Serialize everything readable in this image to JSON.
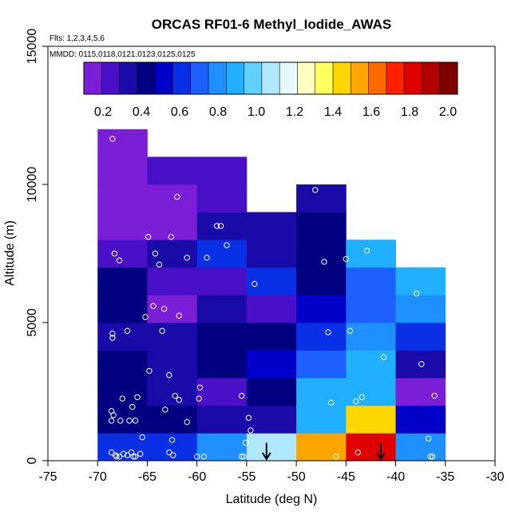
{
  "chart_data": {
    "type": "heatmap",
    "title": "ORCAS RF01-6 Methyl_Iodide_AWAS",
    "flights_note": "Flts: 1,2,3,4,5,6",
    "dates_note": "MMDD: 0115,0118,0121,0123,0125,0125",
    "xlabel": "Latitude (deg N)",
    "ylabel": "Altitude (m)",
    "xlim": [
      -75,
      -30
    ],
    "ylim": [
      0,
      15000
    ],
    "x_ticks": [
      -75,
      -70,
      -65,
      -60,
      -55,
      -50,
      -45,
      -40,
      -35,
      -30
    ],
    "x_tick_labels": [
      "-75",
      "-70",
      "-65",
      "-60",
      "-55",
      "-50",
      "-45",
      "-40",
      "-35",
      "-30"
    ],
    "y_ticks": [
      0,
      5000,
      10000,
      15000
    ],
    "y_tick_labels": [
      "0",
      "5000",
      "10000",
      "15000"
    ],
    "colorbar": {
      "range": [
        0.1,
        2.05
      ],
      "ticks": [
        0.2,
        0.4,
        0.6,
        0.8,
        1.0,
        1.2,
        1.4,
        1.6,
        1.8,
        2.0
      ],
      "tick_labels": [
        "0.2",
        "0.4",
        "0.6",
        "0.8",
        "1.0",
        "1.2",
        "1.4",
        "1.6",
        "1.8",
        "2.0"
      ],
      "colors": [
        "#7a1fd6",
        "#4a10c8",
        "#1a0aa8",
        "#000080",
        "#0000c8",
        "#0a30e6",
        "#1e60ff",
        "#1e90ff",
        "#20b0ff",
        "#60d0ff",
        "#b0e8ff",
        "#e8f8ff",
        "#ffffc0",
        "#ffff60",
        "#ffd700",
        "#ffa500",
        "#ff6a00",
        "#ff2000",
        "#e00000",
        "#b00000",
        "#800000"
      ]
    },
    "bin_lat_edges": [
      -70,
      -65,
      -60,
      -55,
      -50,
      -45,
      -40,
      -35
    ],
    "bin_alt_step": 1000,
    "columns": [
      {
        "lat_min": -70,
        "lat_max": -65,
        "values": [
          0.62,
          0.42,
          0.38,
          0.38,
          0.35,
          0.38,
          0.38,
          0.28,
          0.16,
          0.14,
          0.14,
          0.14
        ]
      },
      {
        "lat_min": -65,
        "lat_max": -60,
        "values": [
          0.62,
          0.42,
          0.34,
          0.3,
          0.32,
          0.18,
          0.2,
          0.3,
          0.16,
          0.14,
          0.2
        ]
      },
      {
        "lat_min": -60,
        "lat_max": -55,
        "values": [
          0.8,
          0.36,
          0.22,
          0.38,
          0.38,
          0.36,
          0.26,
          0.58,
          0.35,
          0.24,
          0.24
        ]
      },
      {
        "lat_min": -55,
        "lat_max": -50,
        "values": [
          1.08,
          0.3,
          0.38,
          0.52,
          0.42,
          0.26,
          0.58,
          0.36,
          0.3
        ]
      },
      {
        "lat_min": -50,
        "lat_max": -45,
        "values": [
          1.55,
          0.92,
          0.88,
          0.74,
          0.62,
          0.52,
          0.42,
          0.46,
          0.4,
          0.36
        ]
      },
      {
        "lat_min": -45,
        "lat_max": -40,
        "values": [
          1.85,
          1.48,
          0.9,
          0.88,
          0.76,
          0.74,
          0.7,
          0.88
        ]
      },
      {
        "lat_min": -40,
        "lat_max": -35,
        "values": [
          0.84,
          0.55,
          0.18,
          0.36,
          0.58,
          0.78,
          0.88
        ]
      }
    ],
    "samples": [
      {
        "lat": -68.5,
        "alt": 11650
      },
      {
        "lat": -68.3,
        "alt": 7500
      },
      {
        "lat": -67.8,
        "alt": 7250
      },
      {
        "lat": -67.0,
        "alt": 4700
      },
      {
        "lat": -68.5,
        "alt": 4600
      },
      {
        "lat": -68.5,
        "alt": 4450
      },
      {
        "lat": -66.0,
        "alt": 2300
      },
      {
        "lat": -67.5,
        "alt": 2250
      },
      {
        "lat": -66.5,
        "alt": 1950
      },
      {
        "lat": -68.6,
        "alt": 1800
      },
      {
        "lat": -68.4,
        "alt": 1650
      },
      {
        "lat": -68.6,
        "alt": 1450
      },
      {
        "lat": -67.7,
        "alt": 1450
      },
      {
        "lat": -66.8,
        "alt": 1450
      },
      {
        "lat": -66.2,
        "alt": 1450
      },
      {
        "lat": -68.6,
        "alt": 300
      },
      {
        "lat": -68.2,
        "alt": 200
      },
      {
        "lat": -67.8,
        "alt": 150
      },
      {
        "lat": -67.4,
        "alt": 250
      },
      {
        "lat": -67.0,
        "alt": 200
      },
      {
        "lat": -66.6,
        "alt": 300
      },
      {
        "lat": -66.2,
        "alt": 150
      },
      {
        "lat": -65.7,
        "alt": 250
      },
      {
        "lat": -65.5,
        "alt": 850
      },
      {
        "lat": -68.1,
        "alt": 150
      },
      {
        "lat": -66.4,
        "alt": 150
      },
      {
        "lat": -62.0,
        "alt": 9550
      },
      {
        "lat": -64.9,
        "alt": 8100
      },
      {
        "lat": -62.6,
        "alt": 8100
      },
      {
        "lat": -64.2,
        "alt": 7500
      },
      {
        "lat": -61.0,
        "alt": 7350
      },
      {
        "lat": -63.8,
        "alt": 7100
      },
      {
        "lat": -64.4,
        "alt": 5600
      },
      {
        "lat": -63.3,
        "alt": 5500
      },
      {
        "lat": -65.2,
        "alt": 5200
      },
      {
        "lat": -61.8,
        "alt": 5250
      },
      {
        "lat": -63.5,
        "alt": 4700
      },
      {
        "lat": -64.8,
        "alt": 3250
      },
      {
        "lat": -62.8,
        "alt": 3100
      },
      {
        "lat": -62.2,
        "alt": 2350
      },
      {
        "lat": -61.8,
        "alt": 2200
      },
      {
        "lat": -63.2,
        "alt": 1850
      },
      {
        "lat": -61.0,
        "alt": 1400
      },
      {
        "lat": -62.5,
        "alt": 750
      },
      {
        "lat": -62.8,
        "alt": 300
      },
      {
        "lat": -62.4,
        "alt": 200
      },
      {
        "lat": -58.0,
        "alt": 8500
      },
      {
        "lat": -57.6,
        "alt": 8500
      },
      {
        "lat": -57.0,
        "alt": 7800
      },
      {
        "lat": -59.0,
        "alt": 7350
      },
      {
        "lat": -59.7,
        "alt": 2650
      },
      {
        "lat": -59.8,
        "alt": 2250
      },
      {
        "lat": -60.0,
        "alt": 150
      },
      {
        "lat": -59.3,
        "alt": 150
      },
      {
        "lat": -55.5,
        "alt": 2350
      },
      {
        "lat": -55.1,
        "alt": 650
      },
      {
        "lat": -55.5,
        "alt": 150
      },
      {
        "lat": -55.3,
        "alt": 150
      },
      {
        "lat": -54.8,
        "alt": 1550
      },
      {
        "lat": -54.6,
        "alt": 1100
      },
      {
        "lat": -54.2,
        "alt": 6400
      },
      {
        "lat": -48.1,
        "alt": 9800
      },
      {
        "lat": -47.2,
        "alt": 7200
      },
      {
        "lat": -45.0,
        "alt": 7300
      },
      {
        "lat": -46.8,
        "alt": 4650
      },
      {
        "lat": -44.6,
        "alt": 4700
      },
      {
        "lat": -46.5,
        "alt": 2100
      },
      {
        "lat": -46.0,
        "alt": 150
      },
      {
        "lat": -44.0,
        "alt": 2150
      },
      {
        "lat": -43.4,
        "alt": 2300
      },
      {
        "lat": -42.9,
        "alt": 7600
      },
      {
        "lat": -41.2,
        "alt": 3750
      },
      {
        "lat": -43.8,
        "alt": 300
      },
      {
        "lat": -37.9,
        "alt": 6050
      },
      {
        "lat": -37.4,
        "alt": 3500
      },
      {
        "lat": -36.1,
        "alt": 2350
      },
      {
        "lat": -36.7,
        "alt": 800
      },
      {
        "lat": -36.5,
        "alt": 150
      },
      {
        "lat": -36.3,
        "alt": 150
      }
    ],
    "arrows": [
      {
        "lat": -53.0,
        "alt_top": 650,
        "alt_bottom": 0
      },
      {
        "lat": -41.5,
        "alt_top": 650,
        "alt_bottom": 0
      }
    ]
  }
}
